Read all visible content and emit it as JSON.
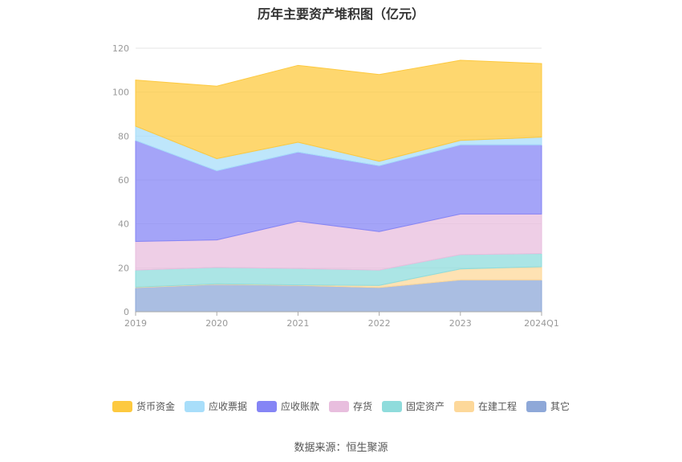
{
  "chart_data": {
    "type": "area",
    "stacked": true,
    "title": "历年主要资产堆积图（亿元）",
    "categories": [
      "2019",
      "2020",
      "2021",
      "2022",
      "2023",
      "2024Q1"
    ],
    "ylim": [
      0,
      120
    ],
    "yticks": [
      "0",
      "20",
      "40",
      "60",
      "80",
      "100",
      "120"
    ],
    "grid": true,
    "legend_position": "bottom",
    "series": [
      {
        "name": "其它",
        "color": "#8ea8d8",
        "values": [
          11,
          12.5,
          12,
          11,
          14.5,
          14.5
        ]
      },
      {
        "name": "在建工程",
        "color": "#fdd89a",
        "values": [
          0.2,
          0.2,
          0.2,
          1,
          5,
          6
        ]
      },
      {
        "name": "固定资产",
        "color": "#8fdcdc",
        "values": [
          7.8,
          7.5,
          7.5,
          7,
          6.5,
          6
        ]
      },
      {
        "name": "存货",
        "color": "#e8bede",
        "values": [
          13,
          12.5,
          21.5,
          17.5,
          18.5,
          18
        ]
      },
      {
        "name": "应收账款",
        "color": "#8585f5",
        "values": [
          46,
          31.5,
          31.5,
          30,
          31.5,
          31.5
        ]
      },
      {
        "name": "应收票据",
        "color": "#a8defa",
        "values": [
          6.5,
          5.5,
          4.5,
          2,
          2,
          3.5
        ]
      },
      {
        "name": "货币资金",
        "color": "#fdc93f",
        "values": [
          21,
          33,
          35,
          39.5,
          36.5,
          33.5
        ]
      }
    ]
  },
  "legend": {
    "items": [
      "货币资金",
      "应收票据",
      "应收账款",
      "存货",
      "固定资产",
      "在建工程",
      "其它"
    ],
    "colors": [
      "#fdc93f",
      "#a8defa",
      "#8585f5",
      "#e8bede",
      "#8fdcdc",
      "#fdd89a",
      "#8ea8d8"
    ]
  },
  "source": "数据来源：恒生聚源"
}
